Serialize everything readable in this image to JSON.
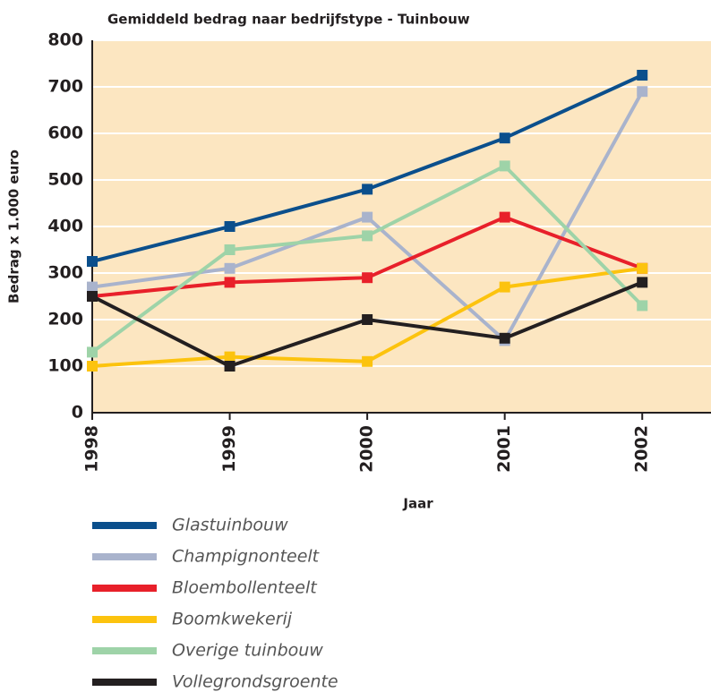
{
  "chart_data": {
    "type": "line",
    "title": "Gemiddeld bedrag naar bedrijfstype - Tuinbouw",
    "y_label": "Bedrag x 1.000 euro",
    "x_label": "Jaar",
    "x": [
      1998,
      1999,
      2000,
      2001,
      2002
    ],
    "xlim": [
      1998,
      2002.5
    ],
    "xticks": [
      1998,
      1999,
      2000,
      2001,
      2002
    ],
    "ylim": [
      0,
      800
    ],
    "yticks": [
      0,
      100,
      200,
      300,
      400,
      500,
      600,
      700,
      800
    ],
    "grid": true,
    "series": [
      {
        "name": "Glastuinbouw",
        "color": "#0b4f8c",
        "values": [
          325,
          400,
          480,
          590,
          725
        ]
      },
      {
        "name": "Champignonteelt",
        "color": "#a9b3cc",
        "values": [
          270,
          310,
          420,
          155,
          690
        ]
      },
      {
        "name": "Bloembollenteelt",
        "color": "#e8202a",
        "values": [
          250,
          280,
          290,
          420,
          310
        ]
      },
      {
        "name": "Boomkwekerij",
        "color": "#fcc30e",
        "values": [
          100,
          120,
          110,
          270,
          310
        ]
      },
      {
        "name": "Overige tuinbouw",
        "color": "#9ed3a8",
        "values": [
          130,
          350,
          380,
          530,
          230
        ]
      },
      {
        "name": "Vollegrondsgroente",
        "color": "#231f20",
        "values": [
          250,
          100,
          200,
          160,
          280
        ]
      }
    ]
  }
}
